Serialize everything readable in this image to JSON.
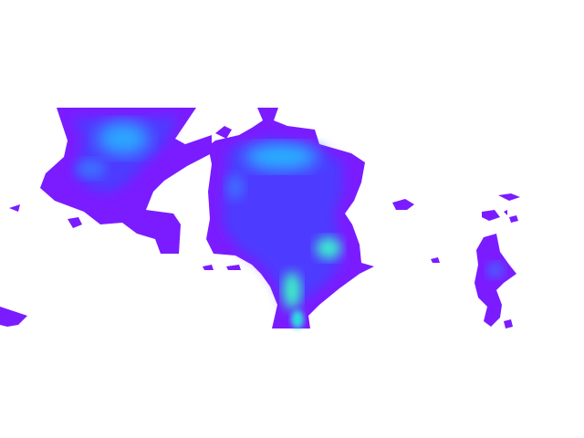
{
  "map": {
    "type": "density-heatmap",
    "background_color": "#ffffff",
    "palette": {
      "low": "#7a1cff",
      "mid_low": "#5b2cff",
      "mid": "#3f6bff",
      "mid_high": "#22b8f5",
      "high": "#3cf0c8"
    },
    "legend_visible": false,
    "labels_visible": false
  }
}
